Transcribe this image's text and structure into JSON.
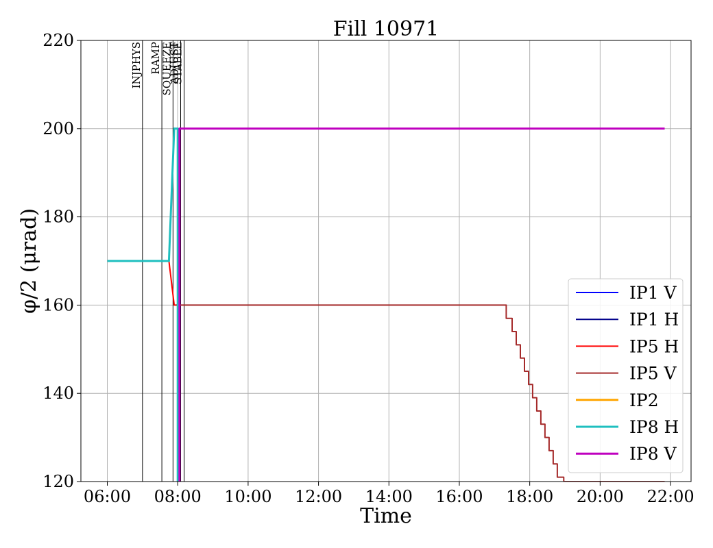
{
  "chart_data": {
    "type": "line",
    "title": "Fill 10971",
    "xlabel": "Time",
    "ylabel": "φ/2 (μrad)",
    "xlim": [
      "05:15",
      "22:35"
    ],
    "ylim": [
      120,
      220
    ],
    "x_ticks": [
      "06:00",
      "08:00",
      "10:00",
      "12:00",
      "14:00",
      "16:00",
      "18:00",
      "20:00",
      "22:00"
    ],
    "y_ticks": [
      120,
      140,
      160,
      180,
      200,
      220
    ],
    "grid": true,
    "legend_position": "lower-right",
    "phases": [
      {
        "label": "INJPHYS",
        "time": "07:00"
      },
      {
        "label": "RAMP",
        "time": "07:33"
      },
      {
        "label": "SQUEEZE",
        "time": "07:52"
      },
      {
        "label": "ADJUST",
        "time": "08:05"
      },
      {
        "label": "STABLE",
        "time": "08:11"
      }
    ],
    "series": [
      {
        "name": "IP1 V",
        "color": "#0000ff",
        "width": 2,
        "points": [
          [
            "08:03",
            120
          ],
          [
            "08:03",
            120
          ]
        ]
      },
      {
        "name": "IP1 H",
        "color": "#00008b",
        "width": 2,
        "points": [
          [
            "08:03",
            120
          ],
          [
            "08:03",
            120
          ]
        ]
      },
      {
        "name": "IP5 H",
        "color": "#ff0000",
        "width": 2,
        "points": [
          [
            "06:00",
            170
          ],
          [
            "07:45",
            170
          ],
          [
            "07:54",
            160
          ],
          [
            "08:03",
            160
          ],
          [
            "08:03",
            120
          ]
        ]
      },
      {
        "name": "IP5 V",
        "color": "#a52a2a",
        "width": 2,
        "points": [
          [
            "07:57",
            160
          ],
          [
            "17:20",
            160
          ],
          [
            "17:20",
            157
          ],
          [
            "17:30",
            157
          ],
          [
            "17:30",
            154
          ],
          [
            "17:37",
            154
          ],
          [
            "17:37",
            151
          ],
          [
            "17:44",
            151
          ],
          [
            "17:44",
            148
          ],
          [
            "17:51",
            148
          ],
          [
            "17:51",
            145
          ],
          [
            "17:58",
            145
          ],
          [
            "17:58",
            142
          ],
          [
            "18:05",
            142
          ],
          [
            "18:05",
            139
          ],
          [
            "18:12",
            139
          ],
          [
            "18:12",
            136
          ],
          [
            "18:19",
            136
          ],
          [
            "18:19",
            133
          ],
          [
            "18:26",
            133
          ],
          [
            "18:26",
            130
          ],
          [
            "18:33",
            130
          ],
          [
            "18:33",
            127
          ],
          [
            "18:40",
            127
          ],
          [
            "18:40",
            124
          ],
          [
            "18:47",
            124
          ],
          [
            "18:47",
            121
          ],
          [
            "18:58",
            121
          ],
          [
            "18:58",
            120
          ],
          [
            "21:50",
            120
          ]
        ]
      },
      {
        "name": "IP2",
        "color": "#ffa500",
        "width": 3,
        "points": [
          [
            "08:03",
            120
          ],
          [
            "08:03",
            120
          ]
        ]
      },
      {
        "name": "IP8 H",
        "color": "#1fbfbf",
        "width": 3,
        "points": [
          [
            "06:00",
            170
          ],
          [
            "07:45",
            170
          ],
          [
            "07:54",
            200
          ],
          [
            "08:00",
            200
          ],
          [
            "08:00",
            120
          ]
        ]
      },
      {
        "name": "IP8 V",
        "color": "#bf00bf",
        "width": 3,
        "points": [
          [
            "08:03",
            120
          ],
          [
            "08:03",
            200
          ],
          [
            "21:50",
            200
          ]
        ]
      }
    ]
  }
}
